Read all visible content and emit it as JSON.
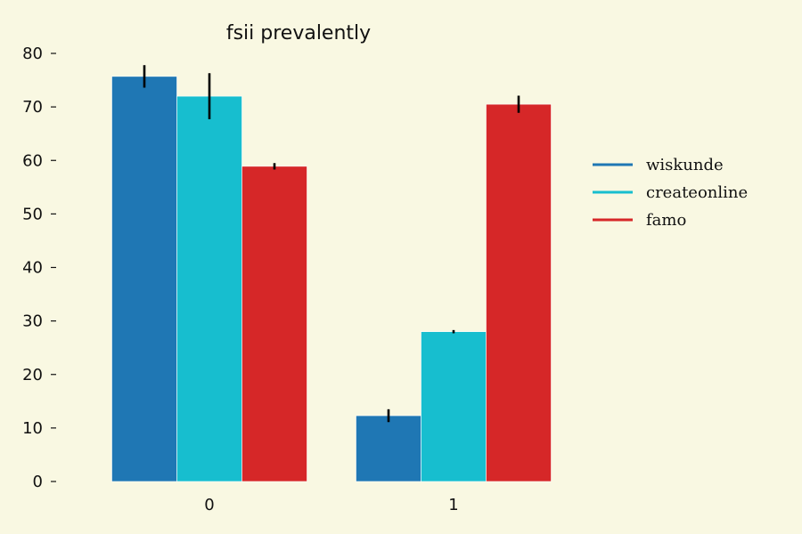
{
  "chart_data": {
    "type": "bar",
    "title": "fsii prevalently",
    "xlabel": "",
    "ylabel": "",
    "categories": [
      "0",
      "1"
    ],
    "ylim": [
      0,
      80
    ],
    "yticks": [
      0,
      10,
      20,
      30,
      40,
      50,
      60,
      70,
      80
    ],
    "grid": false,
    "legend_position": "right",
    "series": [
      {
        "name": "wiskunde",
        "color": "#1f77b4",
        "values": [
          75.7,
          12.3
        ],
        "errors": [
          2.1,
          1.2
        ]
      },
      {
        "name": "createonline",
        "color": "#17becf",
        "values": [
          72.0,
          28.0
        ],
        "errors": [
          4.3,
          0.3
        ]
      },
      {
        "name": "famo",
        "color": "#d62728",
        "values": [
          58.9,
          70.5
        ],
        "errors": [
          0.6,
          1.6
        ]
      }
    ]
  }
}
